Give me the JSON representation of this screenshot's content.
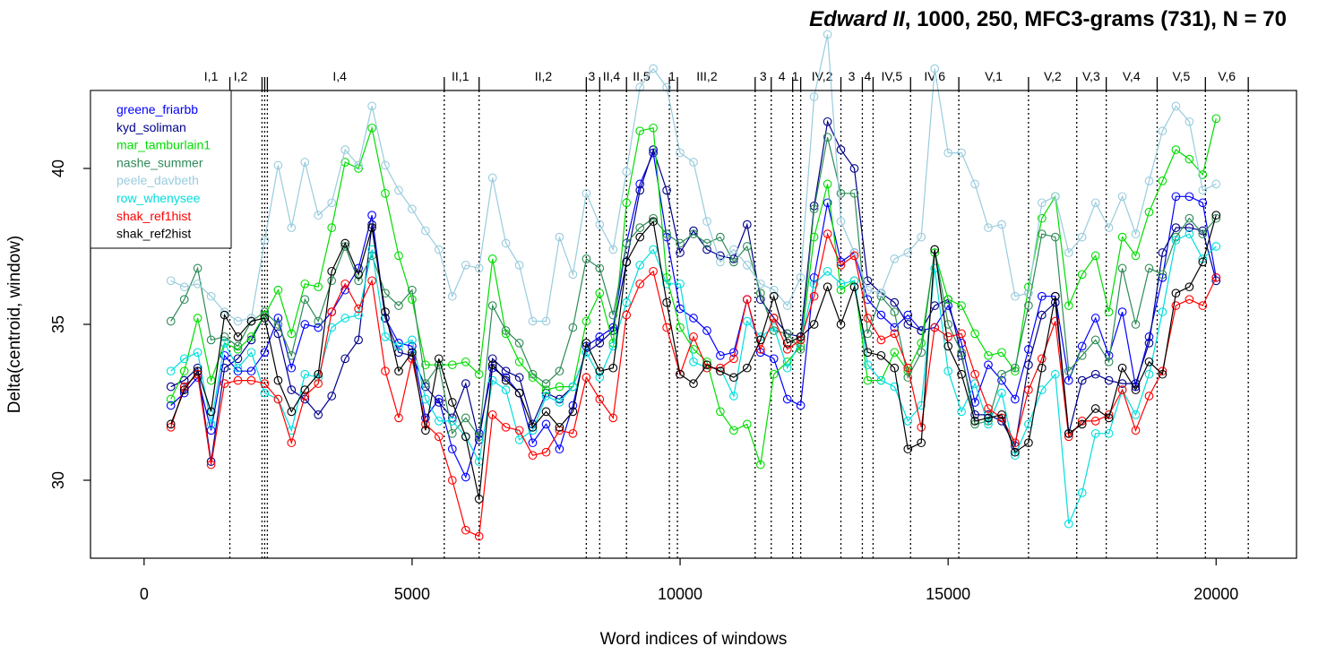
{
  "chart_data": {
    "type": "line",
    "title_italic": "Edward II",
    "title_rest": ", 1000, 250, MFC3-grams (731), N = 70",
    "xlabel": "Word indices of windows",
    "ylabel": "Delta(centroid, window)",
    "xlim": [
      -1000,
      21500
    ],
    "ylim": [
      27.5,
      42.5
    ],
    "x_ticks": [
      0,
      5000,
      10000,
      15000,
      20000
    ],
    "x_tick_labels": [
      "0",
      "5000",
      "10000",
      "15000",
      "20000"
    ],
    "y_ticks": [
      30,
      35,
      40
    ],
    "y_tick_labels": [
      "30",
      "35",
      "40"
    ],
    "legend_position": "top-left",
    "x": [
      500,
      750,
      1000,
      1250,
      1500,
      1750,
      2000,
      2250,
      2500,
      2750,
      3000,
      3250,
      3500,
      3750,
      4000,
      4250,
      4500,
      4750,
      5000,
      5250,
      5500,
      5750,
      6000,
      6250,
      6500,
      6750,
      7000,
      7250,
      7500,
      7750,
      8000,
      8250,
      8500,
      8750,
      9000,
      9250,
      9500,
      9750,
      10000,
      10250,
      10500,
      10750,
      11000,
      11250,
      11500,
      11750,
      12000,
      12250,
      12500,
      12750,
      13000,
      13250,
      13500,
      13750,
      14000,
      14250,
      14500,
      14750,
      15000,
      15250,
      15500,
      15750,
      16000,
      16250,
      16500,
      16750,
      17000,
      17250,
      17500,
      17750,
      18000,
      18250,
      18500,
      18750,
      19000,
      19250,
      19500,
      19750,
      20000
    ],
    "series": [
      {
        "name": "greene_friarbb",
        "color": "#0000FF",
        "values": [
          32.4,
          32.8,
          33.3,
          31.6,
          34.0,
          33.5,
          33.5,
          34.1,
          35.2,
          33.6,
          35.0,
          34.9,
          35.4,
          36.1,
          36.8,
          38.5,
          35.2,
          34.4,
          34.3,
          32.0,
          32.6,
          31.0,
          30.1,
          31.5,
          33.6,
          33.3,
          32.8,
          31.2,
          31.8,
          31.0,
          32.4,
          34.3,
          34.6,
          34.9,
          37.6,
          39.5,
          40.5,
          37.8,
          35.5,
          35.2,
          34.8,
          34.0,
          34.1,
          35.8,
          34.1,
          33.9,
          32.6,
          32.4,
          36.5,
          38.9,
          37.0,
          37.3,
          35.8,
          35.3,
          34.9,
          35.3,
          34.8,
          34.9,
          35.6,
          34.4,
          32.5,
          33.7,
          33.2,
          32.6,
          34.2,
          35.9,
          35.9,
          33.2,
          34.3,
          35.2,
          34.0,
          35.4,
          33.0,
          34.6,
          36.5,
          39.1,
          39.1,
          38.9,
          36.5
        ]
      },
      {
        "name": "kyd_soliman",
        "color": "#00008B",
        "values": [
          33.0,
          33.2,
          33.6,
          30.6,
          33.6,
          33.9,
          34.5,
          35.3,
          34.7,
          32.9,
          32.6,
          32.1,
          32.7,
          33.9,
          34.5,
          38.2,
          35.2,
          34.1,
          34.0,
          33.0,
          32.5,
          32.0,
          33.1,
          31.3,
          33.9,
          33.5,
          33.3,
          31.8,
          32.8,
          32.6,
          33.0,
          34.1,
          34.4,
          34.8,
          37.0,
          39.3,
          40.6,
          39.3,
          37.3,
          38.0,
          37.4,
          37.2,
          37.1,
          38.2,
          35.8,
          35.2,
          34.7,
          34.6,
          38.8,
          41.5,
          40.6,
          40.0,
          36.4,
          36.0,
          35.7,
          35.0,
          34.8,
          35.6,
          35.8,
          34.0,
          32.1,
          32.1,
          31.9,
          31.1,
          33.7,
          35.3,
          35.7,
          31.5,
          33.2,
          33.4,
          33.2,
          33.1,
          33.1,
          34.4,
          37.3,
          38.1,
          38.1,
          38.0,
          36.4
        ]
      },
      {
        "name": "mar_tamburlain1",
        "color": "#00DD00",
        "values": [
          32.6,
          33.5,
          35.2,
          33.2,
          34.4,
          34.2,
          34.6,
          35.3,
          36.1,
          34.7,
          36.3,
          36.2,
          38.1,
          40.2,
          40.0,
          41.3,
          39.2,
          37.2,
          35.8,
          33.7,
          33.7,
          33.7,
          33.8,
          33.4,
          37.1,
          34.7,
          33.8,
          33.3,
          32.9,
          33.0,
          33.0,
          35.1,
          36.0,
          34.4,
          38.9,
          41.2,
          41.3,
          36.5,
          34.9,
          34.2,
          33.8,
          32.2,
          31.6,
          31.8,
          30.5,
          33.4,
          33.8,
          34.3,
          37.8,
          39.5,
          36.1,
          36.4,
          33.2,
          33.2,
          34.1,
          33.5,
          34.4,
          37.3,
          35.8,
          35.6,
          34.7,
          34.0,
          34.1,
          33.5,
          36.2,
          38.4,
          39.1,
          35.6,
          36.6,
          37.2,
          35.4,
          37.8,
          37.2,
          38.6,
          39.6,
          40.6,
          40.3,
          39.8,
          41.6
        ]
      },
      {
        "name": "nashe_summer",
        "color": "#2E8B57",
        "values": [
          35.1,
          35.8,
          36.8,
          34.5,
          34.6,
          34.3,
          35.1,
          35.4,
          35.0,
          34.0,
          35.8,
          35.1,
          36.4,
          37.5,
          36.4,
          37.2,
          36.0,
          35.6,
          36.1,
          33.1,
          33.7,
          31.5,
          32.0,
          31.4,
          35.6,
          34.8,
          34.4,
          33.4,
          33.1,
          33.5,
          34.9,
          37.1,
          36.8,
          35.3,
          37.6,
          38.1,
          38.4,
          37.9,
          37.6,
          37.9,
          37.6,
          37.8,
          37.0,
          37.5,
          36.0,
          34.8,
          34.7,
          34.2,
          38.7,
          41.0,
          39.2,
          39.2,
          34.7,
          35.9,
          35.4,
          33.3,
          34.1,
          37.4,
          35.0,
          34.1,
          31.8,
          31.9,
          33.4,
          33.6,
          35.6,
          37.9,
          37.8,
          33.5,
          34.0,
          34.5,
          33.8,
          36.8,
          35.0,
          36.8,
          36.6,
          37.8,
          38.4,
          37.9,
          38.4
        ]
      },
      {
        "name": "peele_davbeth",
        "color": "#99CCDD",
        "values": [
          36.4,
          36.2,
          36.3,
          35.9,
          35.4,
          35.1,
          35.2,
          37.7,
          40.1,
          38.1,
          40.2,
          38.5,
          38.9,
          40.6,
          40.1,
          42.0,
          40.1,
          39.3,
          38.7,
          38.0,
          37.4,
          35.9,
          36.9,
          36.8,
          39.7,
          37.6,
          36.9,
          35.1,
          35.1,
          37.8,
          36.6,
          39.2,
          38.2,
          37.4,
          39.9,
          42.6,
          43.2,
          42.6,
          40.5,
          40.2,
          38.3,
          37.0,
          37.4,
          36.9,
          36.3,
          36.1,
          35.6,
          36.5,
          42.3,
          44.3,
          38.3,
          37.3,
          36.1,
          36.0,
          37.1,
          37.3,
          37.8,
          43.2,
          40.5,
          40.5,
          39.5,
          38.1,
          38.2,
          35.9,
          36.0,
          38.9,
          39.1,
          37.3,
          37.8,
          38.9,
          38.1,
          39.1,
          37.9,
          39.6,
          41.2,
          42.0,
          41.5,
          39.3,
          39.5
        ]
      },
      {
        "name": "row_whenysee",
        "color": "#00DDDD",
        "values": [
          33.5,
          33.9,
          34.1,
          31.8,
          34.4,
          33.6,
          34.1,
          32.8,
          32.6,
          31.6,
          33.4,
          33.3,
          34.9,
          35.2,
          35.3,
          37.4,
          34.6,
          34.3,
          34.5,
          32.6,
          31.9,
          31.9,
          31.4,
          30.6,
          33.2,
          32.9,
          31.3,
          31.6,
          32.7,
          32.5,
          33.0,
          34.1,
          33.3,
          34.3,
          35.7,
          36.9,
          37.4,
          36.3,
          36.3,
          33.8,
          33.6,
          33.6,
          32.7,
          35.1,
          34.6,
          34.9,
          33.6,
          34.5,
          36.3,
          36.7,
          36.3,
          36.4,
          33.7,
          33.2,
          33.0,
          31.9,
          32.4,
          36.8,
          33.5,
          32.2,
          33.1,
          31.8,
          32.8,
          30.8,
          31.8,
          32.9,
          33.4,
          28.6,
          29.6,
          31.5,
          31.5,
          32.9,
          32.1,
          33.4,
          35.4,
          37.7,
          37.9,
          37.1,
          37.5
        ]
      },
      {
        "name": "shak_ref1hist",
        "color": "#FF0000",
        "values": [
          31.7,
          33.0,
          33.4,
          30.5,
          33.1,
          33.2,
          33.2,
          33.1,
          32.6,
          31.2,
          32.7,
          33.1,
          35.4,
          36.3,
          35.5,
          36.4,
          33.5,
          32.0,
          33.9,
          31.8,
          31.4,
          30.0,
          28.4,
          28.2,
          32.1,
          31.7,
          31.6,
          30.8,
          30.9,
          31.6,
          31.5,
          33.3,
          32.6,
          32.0,
          35.3,
          36.3,
          36.7,
          34.9,
          33.4,
          34.6,
          33.6,
          33.6,
          33.9,
          35.8,
          34.2,
          35.2,
          34.2,
          34.5,
          35.9,
          37.9,
          36.9,
          37.2,
          35.2,
          34.5,
          34.7,
          33.6,
          31.7,
          34.9,
          34.6,
          34.7,
          33.4,
          32.3,
          32.0,
          31.2,
          32.9,
          33.9,
          35.1,
          31.4,
          31.9,
          31.9,
          32.1,
          32.9,
          31.6,
          32.7,
          33.5,
          35.6,
          35.8,
          35.6,
          36.5
        ]
      },
      {
        "name": "shak_ref2hist",
        "color": "#000000",
        "values": [
          31.8,
          32.9,
          33.5,
          32.2,
          35.3,
          34.6,
          35.1,
          35.2,
          33.2,
          32.2,
          32.9,
          33.4,
          36.7,
          37.6,
          36.6,
          38.1,
          35.4,
          33.5,
          34.1,
          31.6,
          33.9,
          32.5,
          31.4,
          29.4,
          33.7,
          33.2,
          32.8,
          31.7,
          32.2,
          31.7,
          32.2,
          34.4,
          33.5,
          33.6,
          37.0,
          37.8,
          38.3,
          35.7,
          33.4,
          33.1,
          33.7,
          33.5,
          33.3,
          33.6,
          34.5,
          35.9,
          34.4,
          34.6,
          35.0,
          36.2,
          35.0,
          36.2,
          34.1,
          34.0,
          33.6,
          31.0,
          31.2,
          37.4,
          34.3,
          33.4,
          31.9,
          32.0,
          32.1,
          30.9,
          31.2,
          33.6,
          35.9,
          31.5,
          31.8,
          32.3,
          32.0,
          33.6,
          32.9,
          33.8,
          33.4,
          36.0,
          36.2,
          37.0,
          38.5
        ]
      }
    ],
    "scene_lines": [
      1600,
      2200,
      2250,
      2300,
      5600,
      6250,
      8250,
      8500,
      9000,
      9800,
      9950,
      11400,
      11700,
      12100,
      12250,
      13000,
      13400,
      13600,
      14300,
      15200,
      16500,
      17400,
      17950,
      18900,
      19800,
      20600
    ],
    "scene_labels": [
      {
        "x": 1250,
        "text": "I,1"
      },
      {
        "x": 1800,
        "text": "I,2"
      },
      {
        "x": 3650,
        "text": "I,4"
      },
      {
        "x": 5900,
        "text": "II,1"
      },
      {
        "x": 7450,
        "text": "II,2"
      },
      {
        "x": 8350,
        "text": "3"
      },
      {
        "x": 8720,
        "text": "II,4"
      },
      {
        "x": 9280,
        "text": "II,5"
      },
      {
        "x": 9850,
        "text": "1"
      },
      {
        "x": 10500,
        "text": "III,2"
      },
      {
        "x": 11550,
        "text": "3"
      },
      {
        "x": 11900,
        "text": "4"
      },
      {
        "x": 12150,
        "text": "1"
      },
      {
        "x": 12650,
        "text": "IV,2"
      },
      {
        "x": 13200,
        "text": "3"
      },
      {
        "x": 13500,
        "text": "4"
      },
      {
        "x": 13950,
        "text": "IV,5"
      },
      {
        "x": 14750,
        "text": "IV,6"
      },
      {
        "x": 15850,
        "text": "V,1"
      },
      {
        "x": 16950,
        "text": "V,2"
      },
      {
        "x": 17670,
        "text": "V,3"
      },
      {
        "x": 18420,
        "text": "V,4"
      },
      {
        "x": 19350,
        "text": "V,5"
      },
      {
        "x": 20200,
        "text": "V,6"
      }
    ]
  }
}
